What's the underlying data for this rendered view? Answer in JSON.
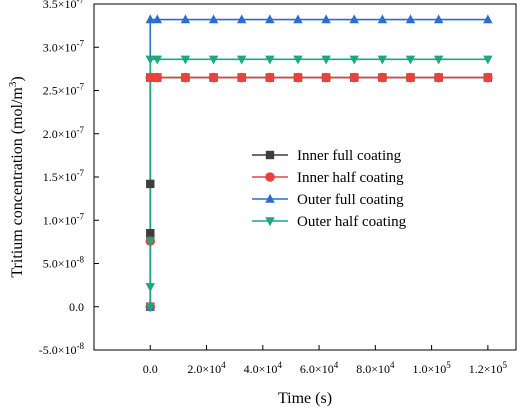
{
  "chart_data": {
    "type": "line",
    "xlabel": "Time (s)",
    "ylabel": "Tritium concentration (mol/m³)",
    "xlim": [
      -20000,
      130000
    ],
    "ylim": [
      -5e-08,
      3.5e-07
    ],
    "x_ticks": [
      0,
      20000,
      40000,
      60000,
      80000,
      100000,
      120000
    ],
    "x_tick_labels": [
      {
        "mant": "0.0",
        "exp": ""
      },
      {
        "mant": "2.0×10",
        "exp": "4"
      },
      {
        "mant": "4.0×10",
        "exp": "4"
      },
      {
        "mant": "6.0×10",
        "exp": "4"
      },
      {
        "mant": "8.0×10",
        "exp": "4"
      },
      {
        "mant": "1.0×10",
        "exp": "5"
      },
      {
        "mant": "1.2×10",
        "exp": "5"
      }
    ],
    "y_ticks": [
      -5e-08,
      0,
      5e-08,
      1e-07,
      1.5e-07,
      2e-07,
      2.5e-07,
      3e-07,
      3.5e-07
    ],
    "y_tick_labels": [
      {
        "mant": "-5.0×10",
        "exp": "-8"
      },
      {
        "mant": "0.0",
        "exp": ""
      },
      {
        "mant": "5.0×10",
        "exp": "-8"
      },
      {
        "mant": "1.0×10",
        "exp": "-7"
      },
      {
        "mant": "1.5×10",
        "exp": "-7"
      },
      {
        "mant": "2.0×10",
        "exp": "-7"
      },
      {
        "mant": "2.5×10",
        "exp": "-7"
      },
      {
        "mant": "3.0×10",
        "exp": "-7"
      },
      {
        "mant": "3.5×10",
        "exp": "-7"
      }
    ],
    "grid": false,
    "legend_position": "center-right",
    "series": [
      {
        "name": "Inner full coating",
        "color": "#3d3d3d",
        "marker": "square",
        "points": [
          [
            0,
            0
          ],
          [
            0,
            8.5e-08
          ],
          [
            0,
            1.42e-07
          ],
          [
            0,
            2.65e-07
          ],
          [
            2500,
            2.65e-07
          ],
          [
            12500,
            2.65e-07
          ],
          [
            22500,
            2.65e-07
          ],
          [
            32500,
            2.65e-07
          ],
          [
            42500,
            2.65e-07
          ],
          [
            52500,
            2.65e-07
          ],
          [
            62500,
            2.65e-07
          ],
          [
            72500,
            2.65e-07
          ],
          [
            82500,
            2.65e-07
          ],
          [
            92500,
            2.65e-07
          ],
          [
            102500,
            2.65e-07
          ],
          [
            120000,
            2.65e-07
          ]
        ]
      },
      {
        "name": "Inner half coating",
        "color": "#e8413e",
        "marker": "circle",
        "points": [
          [
            0,
            0
          ],
          [
            0,
            7.6e-08
          ],
          [
            0,
            2.65e-07
          ],
          [
            2500,
            2.65e-07
          ],
          [
            12500,
            2.65e-07
          ],
          [
            22500,
            2.65e-07
          ],
          [
            32500,
            2.65e-07
          ],
          [
            42500,
            2.65e-07
          ],
          [
            52500,
            2.65e-07
          ],
          [
            62500,
            2.65e-07
          ],
          [
            72500,
            2.65e-07
          ],
          [
            82500,
            2.65e-07
          ],
          [
            92500,
            2.65e-07
          ],
          [
            102500,
            2.65e-07
          ],
          [
            120000,
            2.65e-07
          ]
        ]
      },
      {
        "name": "Outer full coating",
        "color": "#2a6fd0",
        "marker": "triangle-up",
        "points": [
          [
            0,
            0
          ],
          [
            0,
            3.32e-07
          ],
          [
            2500,
            3.32e-07
          ],
          [
            12500,
            3.32e-07
          ],
          [
            22500,
            3.32e-07
          ],
          [
            32500,
            3.32e-07
          ],
          [
            42500,
            3.32e-07
          ],
          [
            52500,
            3.32e-07
          ],
          [
            62500,
            3.32e-07
          ],
          [
            72500,
            3.32e-07
          ],
          [
            82500,
            3.32e-07
          ],
          [
            92500,
            3.32e-07
          ],
          [
            102500,
            3.32e-07
          ],
          [
            120000,
            3.32e-07
          ]
        ]
      },
      {
        "name": "Outer half coating",
        "color": "#1aa87c",
        "marker": "triangle-down",
        "points": [
          [
            0,
            0
          ],
          [
            0,
            2.3e-08
          ],
          [
            0,
            7.6e-08
          ],
          [
            0,
            2.86e-07
          ],
          [
            2500,
            2.86e-07
          ],
          [
            12500,
            2.86e-07
          ],
          [
            22500,
            2.86e-07
          ],
          [
            32500,
            2.86e-07
          ],
          [
            42500,
            2.86e-07
          ],
          [
            52500,
            2.86e-07
          ],
          [
            62500,
            2.86e-07
          ],
          [
            72500,
            2.86e-07
          ],
          [
            82500,
            2.86e-07
          ],
          [
            92500,
            2.86e-07
          ],
          [
            102500,
            2.86e-07
          ],
          [
            120000,
            2.86e-07
          ]
        ]
      }
    ]
  }
}
